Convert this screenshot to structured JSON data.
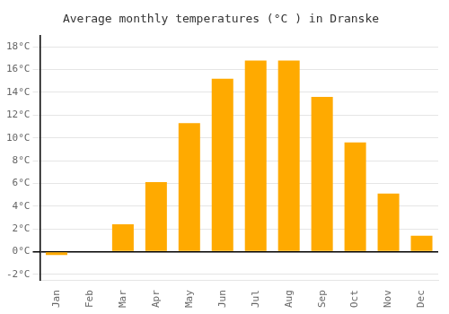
{
  "chart_data": {
    "type": "bar",
    "title": "Average monthly temperatures (°C ) in Dranske",
    "categories": [
      "Jan",
      "Feb",
      "Mar",
      "Apr",
      "May",
      "Jun",
      "Jul",
      "Aug",
      "Sep",
      "Oct",
      "Nov",
      "Dec"
    ],
    "values": [
      -0.3,
      0.0,
      2.4,
      6.1,
      11.3,
      15.2,
      16.8,
      16.8,
      13.6,
      9.6,
      5.1,
      1.4
    ],
    "color": "#FFAA00",
    "ylim": [
      -2.5,
      19
    ],
    "yticks": [
      {
        "value": -2,
        "label": "-2°C"
      },
      {
        "value": 0,
        "label": "0°C"
      },
      {
        "value": 2,
        "label": "2°C"
      },
      {
        "value": 4,
        "label": "4°C"
      },
      {
        "value": 6,
        "label": "6°C"
      },
      {
        "value": 8,
        "label": "8°C"
      },
      {
        "value": 10,
        "label": "10°C"
      },
      {
        "value": 12,
        "label": "12°C"
      },
      {
        "value": 14,
        "label": "14°C"
      },
      {
        "value": 16,
        "label": "16°C"
      },
      {
        "value": 18,
        "label": "18°C"
      }
    ],
    "grid": true
  }
}
